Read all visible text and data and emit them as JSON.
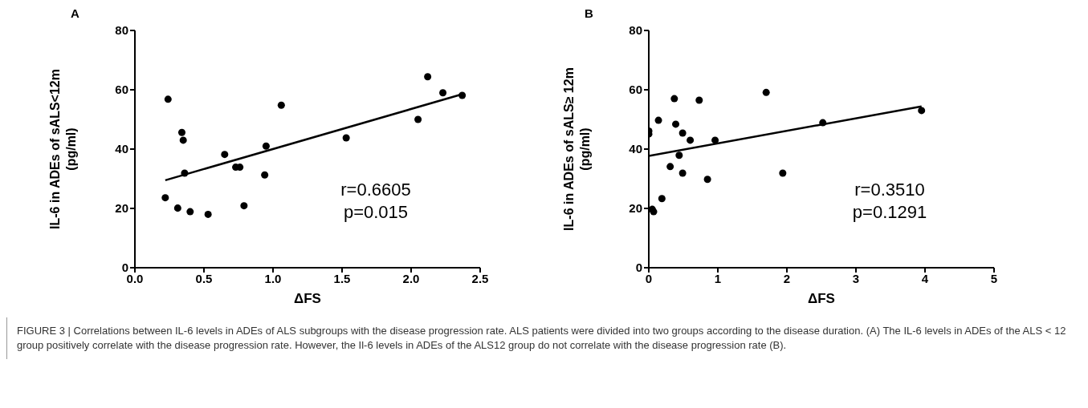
{
  "chart_data": [
    {
      "type": "scatter",
      "title": "A",
      "xlabel": "ΔFS",
      "ylabel": "IL-6 in ADEs of sALS<12m\n(pg/ml)",
      "xlim": [
        0,
        2.5
      ],
      "xticks": [
        {
          "value": 0,
          "label": "0.0"
        },
        {
          "value": 0.5,
          "label": "0.5"
        },
        {
          "value": 1,
          "label": "1.0"
        },
        {
          "value": 1.5,
          "label": "1.5"
        },
        {
          "value": 2,
          "label": "2.0"
        },
        {
          "value": 2.5,
          "label": "2.5"
        }
      ],
      "ylim": [
        0,
        80
      ],
      "yticks": [
        0,
        20,
        40,
        60,
        80
      ],
      "grid": false,
      "series": [
        {
          "type": "scatter",
          "marker": "circle",
          "color": "#000000",
          "x": [
            0.22,
            0.24,
            0.31,
            0.34,
            0.35,
            0.36,
            0.4,
            0.53,
            0.65,
            0.73,
            0.76,
            0.79,
            0.94,
            0.95,
            1.06,
            1.53,
            2.05,
            2.12,
            2.23,
            2.37
          ],
          "values": [
            23.6,
            56.8,
            20.1,
            45.6,
            43.0,
            31.9,
            18.9,
            18.0,
            38.2,
            33.9,
            33.9,
            20.9,
            31.3,
            41.0,
            54.8,
            43.8,
            50.0,
            64.4,
            59.0,
            58.1
          ]
        },
        {
          "type": "line",
          "marker": "none",
          "color": "#000000",
          "x": [
            0.22,
            2.37
          ],
          "values": [
            29.5,
            58.5
          ]
        }
      ],
      "annotations": [
        "r=0.6605",
        "p=0.015",
        "FIGURE 3 | Correlations between IL-6 levels in ADEs of ALS subgroups with the disease progression rate. ALS patients were divided into two groups according to the disease duration. (A) The IL-6 levels in ADEs of the ALS < 12 group positively correlate with the disease progression rate. However, the Il-6 levels in ADEs of the ALS12 group do not correlate with the disease progression rate (B)."
      ]
    },
    {
      "type": "scatter",
      "title": "B",
      "xlabel": "ΔFS",
      "ylabel": "IL-6 in ADEs of sALS≥ 12m\n(pg/ml)",
      "xlim": [
        0,
        5
      ],
      "xticks": [
        0,
        1,
        2,
        3,
        4,
        5
      ],
      "ylim": [
        0,
        80
      ],
      "yticks": [
        0,
        20,
        40,
        60,
        80
      ],
      "grid": false,
      "series": [
        {
          "type": "scatter",
          "marker": "circle",
          "color": "#000000",
          "x": [
            0,
            0,
            0.05,
            0.07,
            0.14,
            0.19,
            0.31,
            0.37,
            0.39,
            0.44,
            0.49,
            0.49,
            0.6,
            0.73,
            0.85,
            0.96,
            1.7,
            1.94,
            2.52,
            3.95
          ],
          "values": [
            46.1,
            45.1,
            19.7,
            18.9,
            49.7,
            23.3,
            34.1,
            57.0,
            48.4,
            37.9,
            45.4,
            31.9,
            43.0,
            56.5,
            29.8,
            43.0,
            59.1,
            31.9,
            48.9,
            53.0
          ]
        },
        {
          "type": "line",
          "marker": "none",
          "color": "#000000",
          "x": [
            0,
            3.95
          ],
          "values": [
            37.7,
            54.4
          ]
        }
      ],
      "annotations": [
        "r=0.3510",
        "p=0.1291"
      ]
    }
  ]
}
